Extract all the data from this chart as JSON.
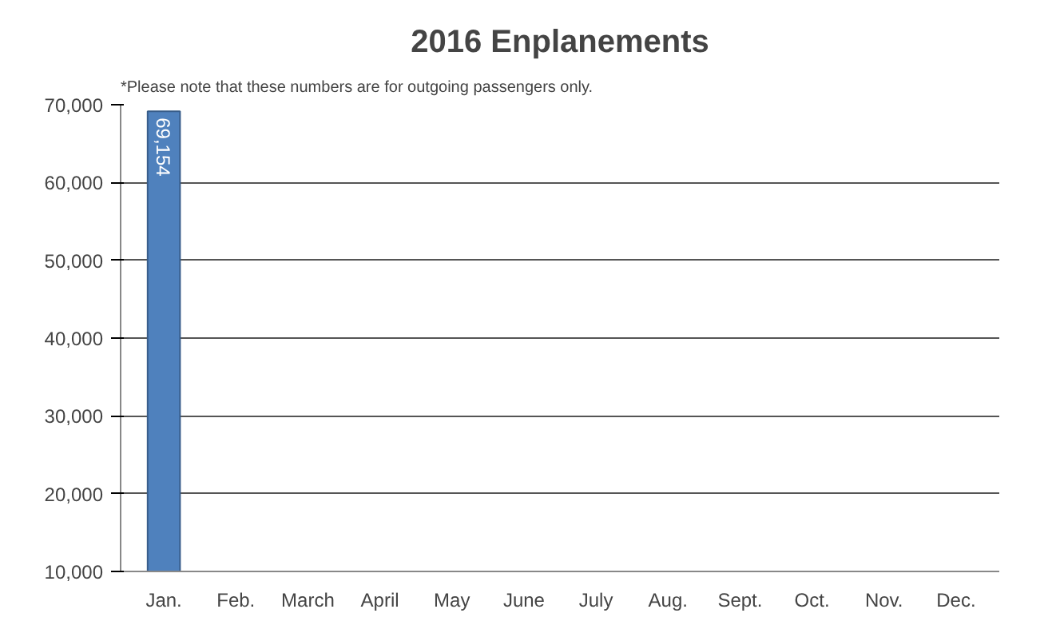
{
  "chart_data": {
    "type": "bar",
    "title": "2016 Enplanements",
    "annotations": [
      "*Please note that these numbers are for outgoing passengers only."
    ],
    "categories": [
      "Jan.",
      "Feb.",
      "March",
      "April",
      "May",
      "June",
      "July",
      "Aug.",
      "Sept.",
      "Oct.",
      "Nov.",
      "Dec."
    ],
    "values": [
      69154,
      null,
      null,
      null,
      null,
      null,
      null,
      null,
      null,
      null,
      null,
      null
    ],
    "color": "#4f81bd",
    "value_labels": [
      "69,154",
      null,
      null,
      null,
      null,
      null,
      null,
      null,
      null,
      null,
      null,
      null
    ],
    "ylim": [
      10000,
      70000
    ],
    "yticks": [
      {
        "value": 10000,
        "label": "10,000"
      },
      {
        "value": 20000,
        "label": "20,000"
      },
      {
        "value": 30000,
        "label": "30,000"
      },
      {
        "value": 40000,
        "label": "40,000"
      },
      {
        "value": 50000,
        "label": "50,000"
      },
      {
        "value": 60000,
        "label": "60,000"
      },
      {
        "value": 70000,
        "label": "70,000"
      }
    ],
    "grid": "y"
  }
}
